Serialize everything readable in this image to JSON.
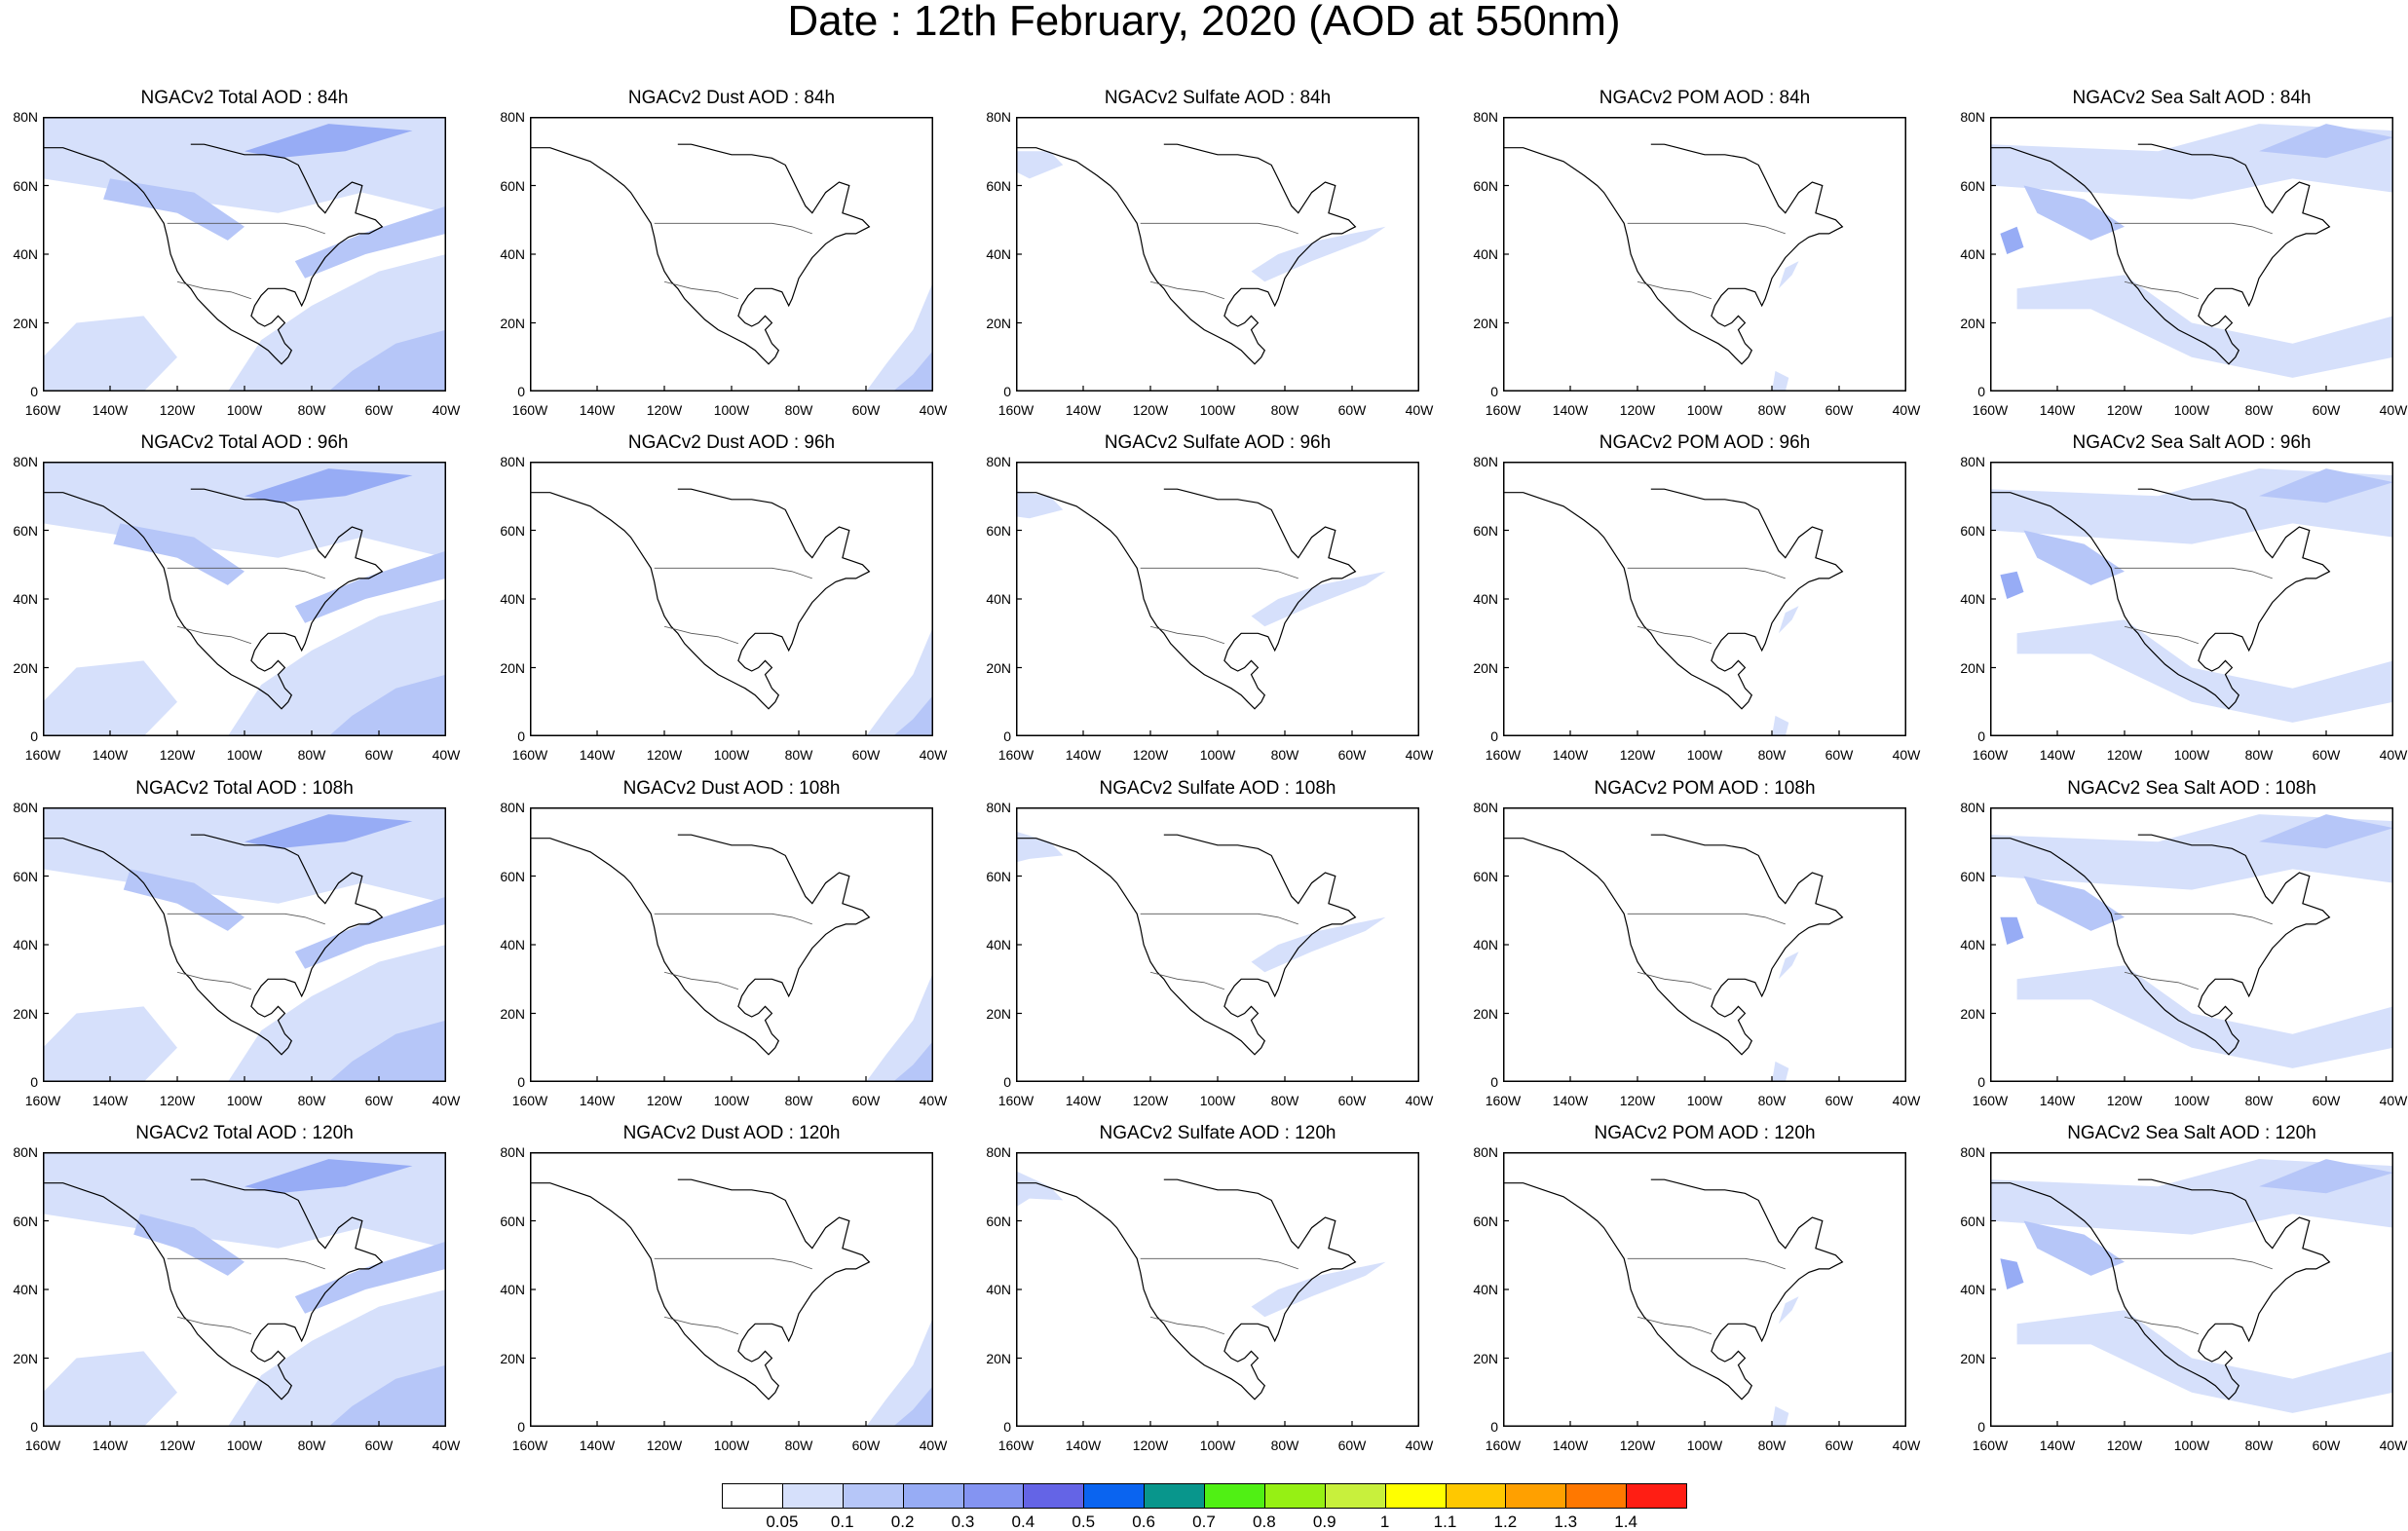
{
  "title": "Date : 12th February, 2020 (AOD at 550nm)",
  "panels": [
    [
      "NGACv2 Total AOD : 84h",
      "NGACv2 Dust AOD : 84h",
      "NGACv2 Sulfate AOD : 84h",
      "NGACv2 POM AOD : 84h",
      "NGACv2 Sea Salt AOD : 84h"
    ],
    [
      "NGACv2 Total AOD : 96h",
      "NGACv2 Dust AOD : 96h",
      "NGACv2 Sulfate AOD : 96h",
      "NGACv2 POM AOD : 96h",
      "NGACv2 Sea Salt AOD : 96h"
    ],
    [
      "NGACv2 Total AOD : 108h",
      "NGACv2 Dust AOD : 108h",
      "NGACv2 Sulfate AOD : 108h",
      "NGACv2 POM AOD : 108h",
      "NGACv2 Sea Salt AOD : 108h"
    ],
    [
      "NGACv2 Total AOD : 120h",
      "NGACv2 Dust AOD : 120h",
      "NGACv2 Sulfate AOD : 120h",
      "NGACv2 POM AOD : 120h",
      "NGACv2 Sea Salt  AOD : 120h"
    ]
  ],
  "lat_ticks": [
    "0",
    "20N",
    "40N",
    "60N",
    "80N"
  ],
  "lon_ticks": [
    "160W",
    "140W",
    "120W",
    "100W",
    "80W",
    "60W",
    "40W"
  ],
  "map_extent": {
    "lon": [
      -160,
      -40
    ],
    "lat": [
      0,
      80
    ]
  },
  "colorbar": {
    "labels": [
      "0.05",
      "0.1",
      "0.2",
      "0.3",
      "0.4",
      "0.5",
      "0.6",
      "0.7",
      "0.8",
      "0.9",
      "1",
      "1.1",
      "1.2",
      "1.3",
      "1.4"
    ],
    "colors": [
      "#ffffff",
      "#d6e0fb",
      "#b6c6f8",
      "#97acf5",
      "#8494f2",
      "#6464e6",
      "#0a64f0",
      "#08968c",
      "#50f014",
      "#96f014",
      "#c8f03c",
      "#ffff00",
      "#ffc800",
      "#ffa000",
      "#ff7800",
      "#ff1e14"
    ]
  }
}
